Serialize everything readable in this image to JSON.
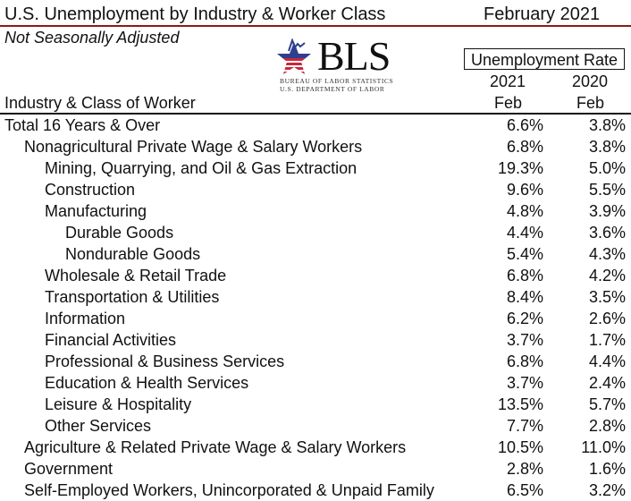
{
  "header": {
    "title": "U.S. Unemployment by Industry & Worker Class",
    "date": "February 2021",
    "subtitle": "Not Seasonally Adjusted",
    "logo": {
      "wordmark": "BLS",
      "line1": "BUREAU OF LABOR STATISTICS",
      "line2": "U.S. DEPARTMENT OF LABOR",
      "icon": "bls-star-icon"
    }
  },
  "table": {
    "group_header": "Unemployment Rate",
    "row_header": "Industry & Class of Worker",
    "columns": [
      {
        "year": "2021",
        "month": "Feb"
      },
      {
        "year": "2020",
        "month": "Feb"
      }
    ],
    "rows": [
      {
        "label": "Total 16 Years & Over",
        "level": 0,
        "v2021": "6.6%",
        "v2020": "3.8%"
      },
      {
        "label": "Nonagricultural Private Wage & Salary Workers",
        "level": 1,
        "v2021": "6.8%",
        "v2020": "3.8%"
      },
      {
        "label": "Mining, Quarrying, and Oil & Gas Extraction",
        "level": 2,
        "v2021": "19.3%",
        "v2020": "5.0%"
      },
      {
        "label": "Construction",
        "level": 2,
        "v2021": "9.6%",
        "v2020": "5.5%"
      },
      {
        "label": "Manufacturing",
        "level": 2,
        "v2021": "4.8%",
        "v2020": "3.9%"
      },
      {
        "label": "Durable Goods",
        "level": 3,
        "v2021": "4.4%",
        "v2020": "3.6%"
      },
      {
        "label": "Nondurable Goods",
        "level": 3,
        "v2021": "5.4%",
        "v2020": "4.3%"
      },
      {
        "label": "Wholesale & Retail Trade",
        "level": 2,
        "v2021": "6.8%",
        "v2020": "4.2%"
      },
      {
        "label": "Transportation & Utilities",
        "level": 2,
        "v2021": "8.4%",
        "v2020": "3.5%"
      },
      {
        "label": "Information",
        "level": 2,
        "v2021": "6.2%",
        "v2020": "2.6%"
      },
      {
        "label": "Financial Activities",
        "level": 2,
        "v2021": "3.7%",
        "v2020": "1.7%"
      },
      {
        "label": "Professional & Business Services",
        "level": 2,
        "v2021": "6.8%",
        "v2020": "4.4%"
      },
      {
        "label": "Education & Health Services",
        "level": 2,
        "v2021": "3.7%",
        "v2020": "2.4%"
      },
      {
        "label": "Leisure & Hospitality",
        "level": 2,
        "v2021": "13.5%",
        "v2020": "5.7%"
      },
      {
        "label": "Other Services",
        "level": 2,
        "v2021": "7.7%",
        "v2020": "2.8%"
      },
      {
        "label": "Agriculture & Related Private Wage & Salary Workers",
        "level": 1,
        "v2021": "10.5%",
        "v2020": "11.0%"
      },
      {
        "label": "Government",
        "level": 1,
        "v2021": "2.8%",
        "v2020": "1.6%"
      },
      {
        "label": "Self-Employed Workers, Unincorporated & Unpaid Family",
        "level": 1,
        "v2021": "6.5%",
        "v2020": "3.2%"
      }
    ]
  },
  "colors": {
    "title_rule": "#8b1a1a",
    "logo_blue": "#2e3f8f",
    "logo_red": "#c8283c"
  }
}
